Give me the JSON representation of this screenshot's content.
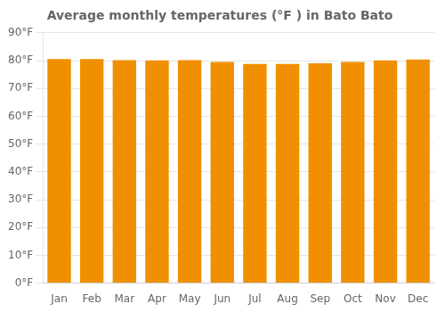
{
  "chart_data": {
    "type": "bar",
    "title": "Average monthly temperatures (°F ) in Bato Bato",
    "categories": [
      "Jan",
      "Feb",
      "Mar",
      "Apr",
      "May",
      "Jun",
      "Jul",
      "Aug",
      "Sep",
      "Oct",
      "Nov",
      "Dec"
    ],
    "values": [
      80.6,
      80.6,
      80.2,
      80.1,
      80.2,
      79.5,
      78.8,
      78.8,
      79.0,
      79.5,
      80.1,
      80.4
    ],
    "color": "#F09000",
    "ylim": [
      0,
      90
    ],
    "yticks": [
      {
        "value": 0,
        "label": "0°F"
      },
      {
        "value": 10,
        "label": "10°F"
      },
      {
        "value": 20,
        "label": "20°F"
      },
      {
        "value": 30,
        "label": "30°F"
      },
      {
        "value": 40,
        "label": "40°F"
      },
      {
        "value": 50,
        "label": "50°F"
      },
      {
        "value": 60,
        "label": "60°F"
      },
      {
        "value": 70,
        "label": "70°F"
      },
      {
        "value": 80,
        "label": "80°F"
      },
      {
        "value": 90,
        "label": "90°F"
      }
    ],
    "grid": true
  }
}
